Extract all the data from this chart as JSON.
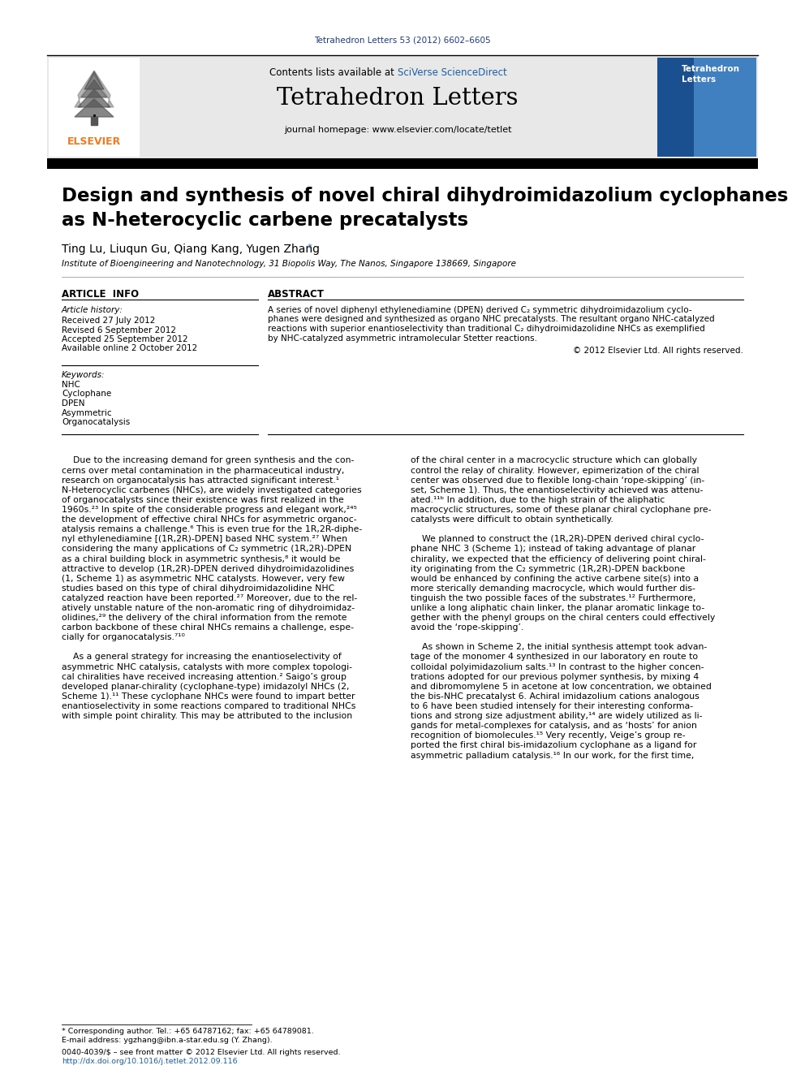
{
  "journal_ref": "Tetrahedron Letters 53 (2012) 6602–6605",
  "contents_line_prefix": "Contents lists available at ",
  "contents_line_link": "SciVerse ScienceDirect",
  "journal_name": "Tetrahedron Letters",
  "journal_homepage": "journal homepage: www.elsevier.com/locate/tetlet",
  "title_line1": "Design and synthesis of novel chiral dihydroimidazolium cyclophanes",
  "title_line2": "as N-heterocyclic carbene precatalysts",
  "authors": "Ting Lu, Liuqun Gu, Qiang Kang, Yugen Zhang",
  "affiliation": "Institute of Bioengineering and Nanotechnology, 31 Biopolis Way, The Nanos, Singapore 138669, Singapore",
  "article_info_header": "ARTICLE  INFO",
  "abstract_header": "ABSTRACT",
  "article_history_label": "Article history:",
  "received": "Received 27 July 2012",
  "revised": "Revised 6 September 2012",
  "accepted": "Accepted 25 September 2012",
  "available": "Available online 2 October 2012",
  "keywords_label": "Keywords:",
  "keywords": [
    "NHC",
    "Cyclophane",
    "DPEN",
    "Asymmetric",
    "Organocatalysis"
  ],
  "abstract_lines": [
    "A series of novel diphenyl ethylenediamine (DPEN) derived C₂ symmetric dihydroimidazolium cyclo-",
    "phanes were designed and synthesized as organo NHC precatalysts. The resultant organo NHC-catalyzed",
    "reactions with superior enantioselectivity than traditional C₂ dihydroimidazolidine NHCs as exemplified",
    "by NHC-catalyzed asymmetric intramolecular Stetter reactions."
  ],
  "copyright": "© 2012 Elsevier Ltd. All rights reserved.",
  "body_left_lines": [
    "    Due to the increasing demand for green synthesis and the con-",
    "cerns over metal contamination in the pharmaceutical industry,",
    "research on organocatalysis has attracted significant interest.¹",
    "N-Heterocyclic carbenes (NHCs), are widely investigated categories",
    "of organocatalysts since their existence was first realized in the",
    "1960s.²³ In spite of the considerable progress and elegant work,²⁴⁵",
    "the development of effective chiral NHCs for asymmetric organoc-",
    "atalysis remains a challenge.⁶ This is even true for the 1R,2R-diphe-",
    "nyl ethylenediamine [(1R,2R)-DPEN] based NHC system.²⁷ When",
    "considering the many applications of C₂ symmetric (1R,2R)-DPEN",
    "as a chiral building block in asymmetric synthesis,⁸ it would be",
    "attractive to develop (1R,2R)-DPEN derived dihydroimidazolidines",
    "(1, Scheme 1) as asymmetric NHC catalysts. However, very few",
    "studies based on this type of chiral dihydroimidazolidine NHC",
    "catalyzed reaction have been reported.²⁷ Moreover, due to the rel-",
    "atively unstable nature of the non-aromatic ring of dihydroimidaz-",
    "olidines,²⁹ the delivery of the chiral information from the remote",
    "carbon backbone of these chiral NHCs remains a challenge, espe-",
    "cially for organocatalysis.⁷¹⁰",
    "",
    "    As a general strategy for increasing the enantioselectivity of",
    "asymmetric NHC catalysis, catalysts with more complex topologi-",
    "cal chiralities have received increasing attention.² Saigo’s group",
    "developed planar-chirality (cyclophane-type) imidazolyl NHCs (2,",
    "Scheme 1).¹¹ These cyclophane NHCs were found to impart better",
    "enantioselectivity in some reactions compared to traditional NHCs",
    "with simple point chirality. This may be attributed to the inclusion"
  ],
  "body_right_lines": [
    "of the chiral center in a macrocyclic structure which can globally",
    "control the relay of chirality. However, epimerization of the chiral",
    "center was observed due to flexible long-chain ‘rope-skipping’ (in-",
    "set, Scheme 1). Thus, the enantioselectivity achieved was attenu-",
    "ated.¹¹ᵇ In addition, due to the high strain of the aliphatic",
    "macrocyclic structures, some of these planar chiral cyclophane pre-",
    "catalysts were difficult to obtain synthetically.",
    "",
    "    We planned to construct the (1R,2R)-DPEN derived chiral cyclo-",
    "phane NHC 3 (Scheme 1); instead of taking advantage of planar",
    "chirality, we expected that the efficiency of delivering point chiral-",
    "ity originating from the C₂ symmetric (1R,2R)-DPEN backbone",
    "would be enhanced by confining the active carbene site(s) into a",
    "more sterically demanding macrocycle, which would further dis-",
    "tinguish the two possible faces of the substrates.¹² Furthermore,",
    "unlike a long aliphatic chain linker, the planar aromatic linkage to-",
    "gether with the phenyl groups on the chiral centers could effectively",
    "avoid the ‘rope-skipping’.",
    "",
    "    As shown in Scheme 2, the initial synthesis attempt took advan-",
    "tage of the monomer 4 synthesized in our laboratory en route to",
    "colloidal polyimidazolium salts.¹³ In contrast to the higher concen-",
    "trations adopted for our previous polymer synthesis, by mixing 4",
    "and dibromomylene 5 in acetone at low concentration, we obtained",
    "the bis-NHC precatalyst 6. Achiral imidazolium cations analogous",
    "to 6 have been studied intensely for their interesting conforma-",
    "tions and strong size adjustment ability,¹⁴ are widely utilized as li-",
    "gands for metal-complexes for catalysis, and as ‘hosts’ for anion",
    "recognition of biomolecules.¹⁵ Very recently, Veige’s group re-",
    "ported the first chiral bis-imidazolium cyclophane as a ligand for",
    "asymmetric palladium catalysis.¹⁶ In our work, for the first time,"
  ],
  "footnote1": "* Corresponding author. Tel.: +65 64787162; fax: +65 64789081.",
  "footnote2": "E-mail address: ygzhang@ibn.a-star.edu.sg (Y. Zhang).",
  "footnote3": "0040-4039/$ – see front matter © 2012 Elsevier Ltd. All rights reserved.",
  "footnote4": "http://dx.doi.org/10.1016/j.tetlet.2012.09.116",
  "header_bg": "#e8e8e8",
  "journal_ref_color": "#1a3a8a",
  "link_color": "#1a5fa8",
  "elsevier_orange": "#f47920"
}
